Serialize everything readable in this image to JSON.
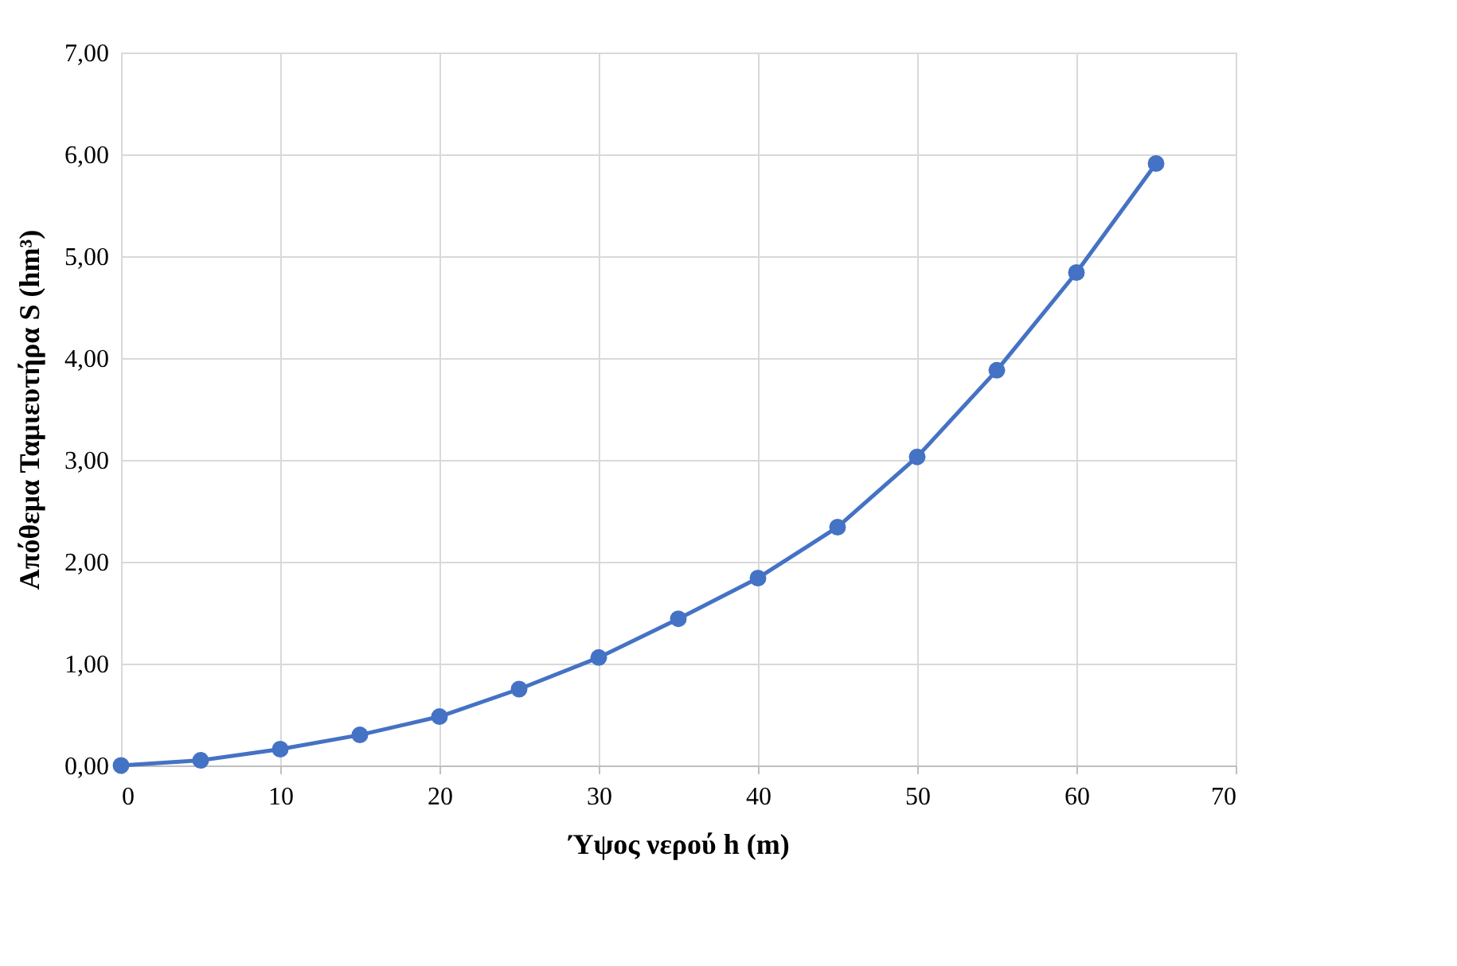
{
  "chart_data": {
    "type": "line",
    "xlabel": "Ύψος νερού h (m)",
    "ylabel": "Απόθεμα Ταμιευτήρα S (hm³)",
    "x": [
      0,
      5,
      10,
      15,
      20,
      25,
      30,
      35,
      40,
      45,
      50,
      55,
      60,
      65
    ],
    "series": [
      {
        "color": "#4472c4",
        "values": [
          0.0,
          0.05,
          0.16,
          0.3,
          0.48,
          0.75,
          1.06,
          1.44,
          1.84,
          2.34,
          3.03,
          3.88,
          4.84,
          5.91
        ]
      }
    ],
    "xlim": [
      0,
      70
    ],
    "xticks": [
      0,
      10,
      20,
      30,
      40,
      50,
      60,
      70
    ],
    "ylim": [
      0,
      7
    ],
    "yticks": [
      {
        "value": 0,
        "label": "0,00"
      },
      {
        "value": 1,
        "label": "1,00"
      },
      {
        "value": 2,
        "label": "2,00"
      },
      {
        "value": 3,
        "label": "3,00"
      },
      {
        "value": 4,
        "label": "4,00"
      },
      {
        "value": 5,
        "label": "5,00"
      },
      {
        "value": 6,
        "label": "6,00"
      },
      {
        "value": 7,
        "label": "7,00"
      }
    ],
    "grid": true,
    "marker": "circle",
    "line_style": "solid"
  }
}
